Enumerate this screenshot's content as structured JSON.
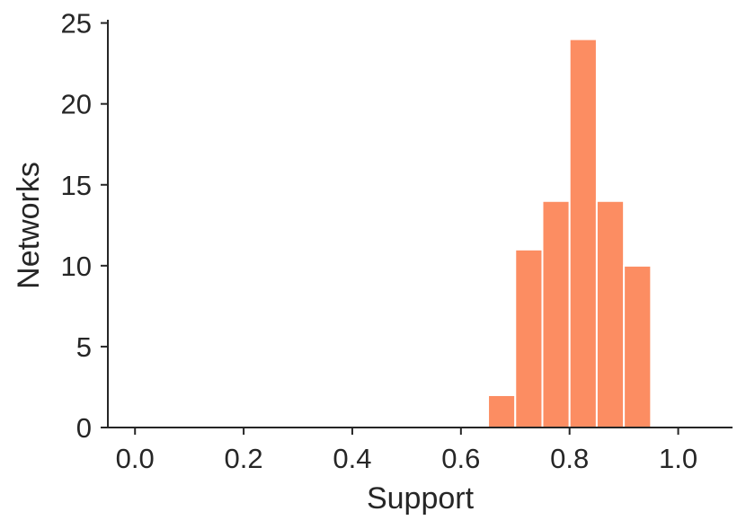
{
  "chart_data": {
    "type": "bar",
    "title": "",
    "xlabel": "Support",
    "ylabel": "Networks",
    "xlim": [
      -0.05,
      1.1
    ],
    "ylim": [
      0,
      25.2
    ],
    "xticks": [
      0.0,
      0.2,
      0.4,
      0.6,
      0.8,
      1.0
    ],
    "xtick_labels": [
      "0.0",
      "0.2",
      "0.4",
      "0.6",
      "0.8",
      "1.0"
    ],
    "yticks": [
      0,
      5,
      10,
      15,
      20,
      25
    ],
    "ytick_labels": [
      "0",
      "5",
      "10",
      "15",
      "20",
      "25"
    ],
    "bins": [
      {
        "x0": 0.65,
        "x1": 0.7,
        "count": 2
      },
      {
        "x0": 0.7,
        "x1": 0.75,
        "count": 11
      },
      {
        "x0": 0.75,
        "x1": 0.8,
        "count": 14
      },
      {
        "x0": 0.8,
        "x1": 0.85,
        "count": 24
      },
      {
        "x0": 0.85,
        "x1": 0.9,
        "count": 14
      },
      {
        "x0": 0.9,
        "x1": 0.95,
        "count": 10
      }
    ],
    "bar_color": "#fc8d62",
    "grid": false
  }
}
